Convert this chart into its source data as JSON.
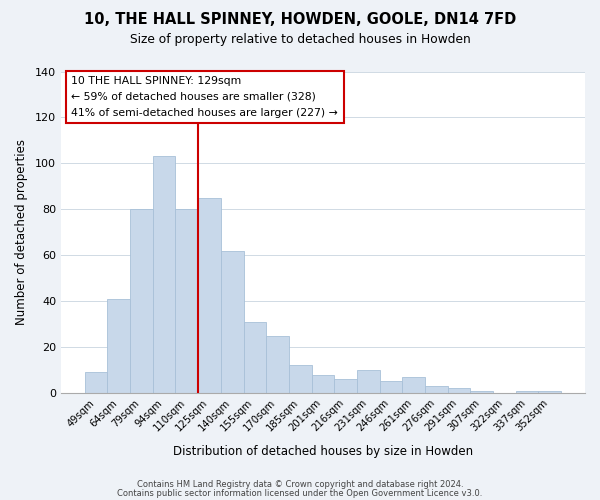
{
  "title": "10, THE HALL SPINNEY, HOWDEN, GOOLE, DN14 7FD",
  "subtitle": "Size of property relative to detached houses in Howden",
  "xlabel": "Distribution of detached houses by size in Howden",
  "ylabel": "Number of detached properties",
  "bar_color": "#c8d8ea",
  "bar_edge_color": "#a8c0d8",
  "categories": [
    "49sqm",
    "64sqm",
    "79sqm",
    "94sqm",
    "110sqm",
    "125sqm",
    "140sqm",
    "155sqm",
    "170sqm",
    "185sqm",
    "201sqm",
    "216sqm",
    "231sqm",
    "246sqm",
    "261sqm",
    "276sqm",
    "291sqm",
    "307sqm",
    "322sqm",
    "337sqm",
    "352sqm"
  ],
  "values": [
    9,
    41,
    80,
    103,
    80,
    85,
    62,
    31,
    25,
    12,
    8,
    6,
    10,
    5,
    7,
    3,
    2,
    1,
    0,
    1,
    1
  ],
  "ylim": [
    0,
    140
  ],
  "yticks": [
    0,
    20,
    40,
    60,
    80,
    100,
    120,
    140
  ],
  "vline_color": "#cc0000",
  "vline_x_index": 5,
  "annotation_title": "10 THE HALL SPINNEY: 129sqm",
  "annotation_line1": "← 59% of detached houses are smaller (328)",
  "annotation_line2": "41% of semi-detached houses are larger (227) →",
  "annotation_box_color": "#ffffff",
  "annotation_box_edge": "#cc0000",
  "footer1": "Contains HM Land Registry data © Crown copyright and database right 2024.",
  "footer2": "Contains public sector information licensed under the Open Government Licence v3.0.",
  "background_color": "#eef2f7",
  "plot_bg_color": "#ffffff",
  "grid_color": "#d0dae4"
}
